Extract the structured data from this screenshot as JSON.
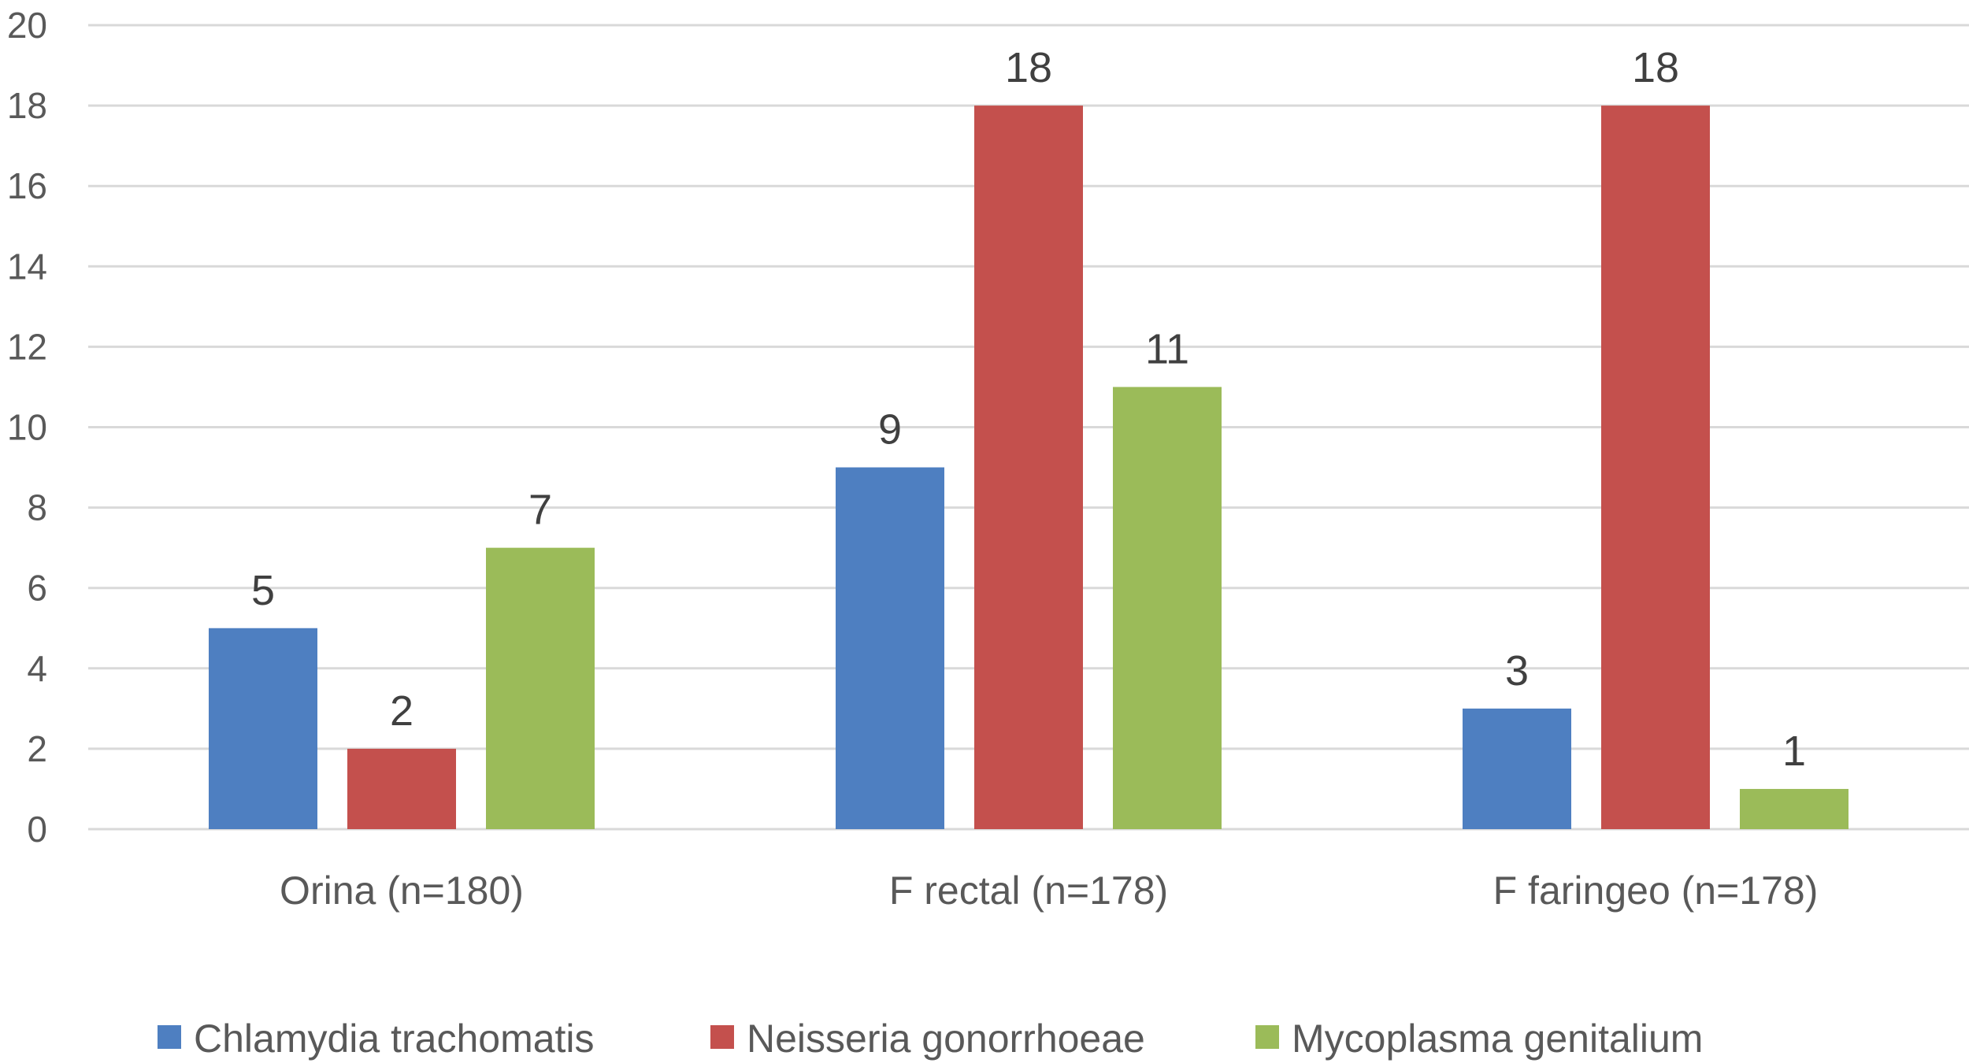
{
  "chart_data": {
    "type": "bar",
    "title": "",
    "xlabel": "",
    "ylabel": "",
    "categories": [
      "Orina (n=180)",
      "F rectal (n=178)",
      "F faringeo (n=178)"
    ],
    "series": [
      {
        "name": "Chlamydia trachomatis",
        "color": "#4e7fc1",
        "values": [
          5,
          9,
          3
        ]
      },
      {
        "name": "Neisseria gonorrhoeae",
        "color": "#c4504d",
        "values": [
          2,
          18,
          18
        ]
      },
      {
        "name": "Mycoplasma genitalium",
        "color": "#9bbb59",
        "values": [
          7,
          11,
          1
        ]
      }
    ],
    "ylim": [
      0,
      20
    ],
    "yticks": [
      0,
      2,
      4,
      6,
      8,
      10,
      12,
      14,
      16,
      18,
      20
    ],
    "grid": true,
    "data_labels": true,
    "legend_position": "bottom"
  }
}
